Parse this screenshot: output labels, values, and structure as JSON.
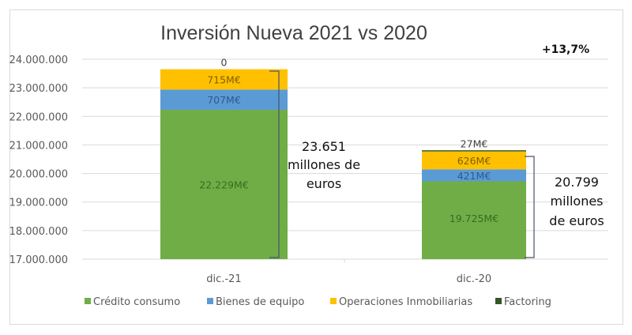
{
  "chart_data": {
    "type": "bar",
    "stacked": true,
    "title": "Inversión Nueva 2021 vs 2020",
    "xlabel": "",
    "ylabel": "",
    "ylim": [
      17000000,
      24000000
    ],
    "y_ticks": [
      17000000,
      18000000,
      19000000,
      20000000,
      21000000,
      22000000,
      23000000,
      24000000
    ],
    "y_tick_labels": [
      "17.000.000",
      "18.000.000",
      "19.000.000",
      "20.000.000",
      "21.000.000",
      "22.000.000",
      "23.000.000",
      "24.000.000"
    ],
    "grid": true,
    "categories": [
      "dic.-21",
      "dic.-20"
    ],
    "series": [
      {
        "name": "Crédito consumo",
        "color": "#70ad47",
        "values": [
          22229000,
          19725000
        ],
        "labels": [
          "22.229M€",
          "19.725M€"
        ],
        "label_color": "#3a6b1f"
      },
      {
        "name": "Bienes de equipo",
        "color": "#5b9bd5",
        "values": [
          707000,
          421000
        ],
        "labels": [
          "707M€",
          "421M€"
        ],
        "label_color": "#2e5a8a"
      },
      {
        "name": "Operaciones Inmobiliarias",
        "color": "#ffc000",
        "values": [
          715000,
          626000
        ],
        "labels": [
          "715M€",
          "626M€"
        ],
        "label_color": "#7f5f00"
      },
      {
        "name": "Factoring",
        "color": "#375623",
        "values": [
          0,
          27000
        ],
        "labels": [
          "0",
          "27M€"
        ],
        "label_color": "#404040"
      }
    ],
    "legend_position": "bottom",
    "annotations": [
      {
        "category": "dic.-21",
        "lines": [
          "23.651",
          "millones de",
          "euros"
        ]
      },
      {
        "category": "dic.-20",
        "lines": [
          "20.799",
          "millones",
          "de euros"
        ]
      }
    ],
    "growth_label": "+13,7%"
  }
}
